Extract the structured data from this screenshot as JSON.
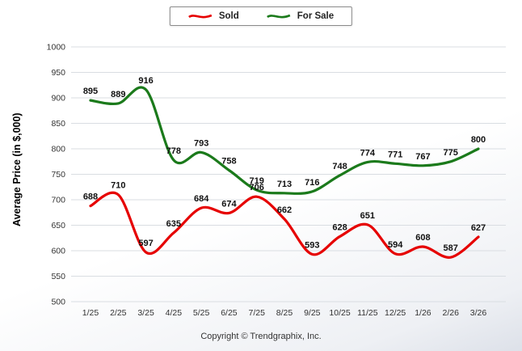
{
  "legend": {
    "sold_label": "Sold",
    "for_sale_label": "For Sale"
  },
  "ylabel": "Average Price (in $,000)",
  "footer": {
    "copyright": "Copyright © Trendgraphix, Inc."
  },
  "chart_data": {
    "type": "line",
    "title": "",
    "xlabel": "",
    "ylabel": "Average Price (in $,000)",
    "categories": [
      "1/25",
      "2/25",
      "3/25",
      "4/25",
      "5/25",
      "6/25",
      "7/25",
      "8/25",
      "9/25",
      "10/25",
      "11/25",
      "12/25",
      "1/26",
      "2/26",
      "3/26"
    ],
    "series": [
      {
        "name": "Sold",
        "color": "#e60000",
        "values": [
          688,
          710,
          597,
          635,
          684,
          674,
          706,
          662,
          593,
          628,
          651,
          594,
          608,
          587,
          627
        ]
      },
      {
        "name": "For Sale",
        "color": "#1b7a1b",
        "values": [
          895,
          889,
          916,
          778,
          793,
          758,
          719,
          713,
          716,
          748,
          774,
          771,
          767,
          775,
          800
        ]
      }
    ],
    "ylim": [
      500,
      1000
    ],
    "ytick_step": 50,
    "grid": true,
    "grid_color": "#d9dde2",
    "label_color": "#111111",
    "tick_color": "#333333",
    "legend_position": "top"
  }
}
